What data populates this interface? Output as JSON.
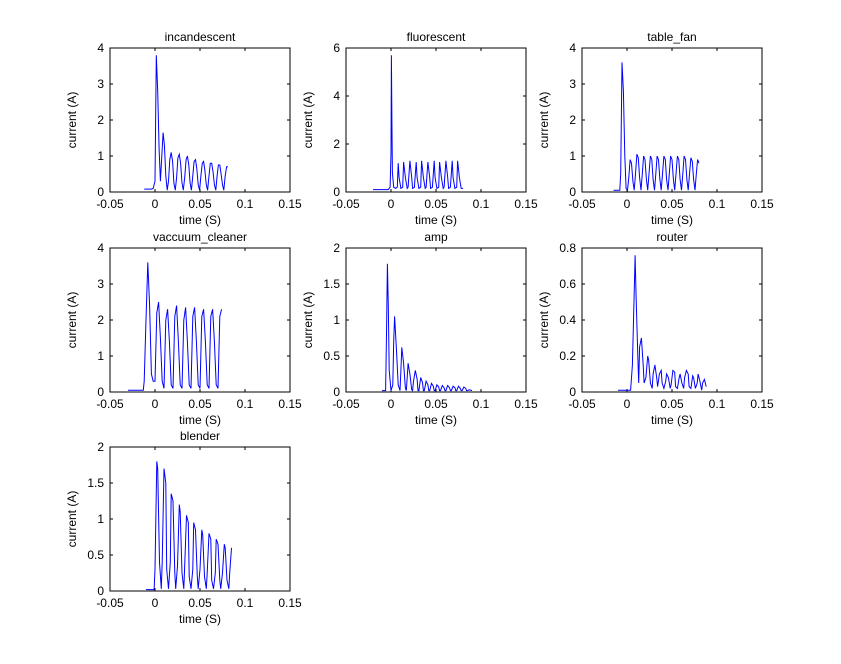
{
  "chart_data": [
    {
      "type": "line",
      "title": "incandescent",
      "xlabel": "time (S)",
      "ylabel": "current (A)",
      "xlim": [
        -0.05,
        0.15
      ],
      "ylim": [
        0,
        4
      ],
      "xticks": [
        "-0.05",
        "0",
        "0.05",
        "0.1",
        "0.15"
      ],
      "yticks": [
        "0",
        "1",
        "2",
        "3",
        "4"
      ],
      "grid": false,
      "series_color": "#0000ff",
      "series": [
        {
          "x": [
            -0.012,
            -0.004,
            -0.002,
            0,
            0.0015,
            0.003,
            0.0045,
            0.006,
            0.0075,
            0.009,
            0.0105,
            0.012,
            0.0135,
            0.015,
            0.0165,
            0.018,
            0.0195,
            0.021,
            0.0225,
            0.024,
            0.0255,
            0.027,
            0.0285,
            0.03,
            0.0315,
            0.033,
            0.0345,
            0.036,
            0.0375,
            0.039,
            0.0405,
            0.042,
            0.0435,
            0.045,
            0.0465,
            0.048,
            0.0495,
            0.051,
            0.0525,
            0.054,
            0.0555,
            0.057,
            0.0585,
            0.06,
            0.0615,
            0.063,
            0.0645,
            0.066,
            0.0675,
            0.069,
            0.0705,
            0.072,
            0.0735,
            0.075,
            0.0765,
            0.078,
            0.0795,
            0.081
          ],
          "y": [
            0.08,
            0.08,
            0.1,
            0.3,
            3.8,
            2.8,
            1.2,
            0.3,
            1.0,
            1.65,
            1.3,
            0.45,
            0.05,
            0.3,
            0.9,
            1.1,
            0.85,
            0.25,
            0.05,
            0.4,
            0.95,
            1.05,
            0.8,
            0.25,
            0.05,
            0.4,
            0.9,
            1.0,
            0.75,
            0.25,
            0.05,
            0.45,
            0.85,
            0.9,
            0.65,
            0.2,
            0.05,
            0.45,
            0.8,
            0.85,
            0.6,
            0.2,
            0.05,
            0.45,
            0.8,
            0.8,
            0.55,
            0.2,
            0.05,
            0.45,
            0.75,
            0.75,
            0.5,
            0.2,
            0.05,
            0.45,
            0.7,
            0.7
          ]
        }
      ]
    },
    {
      "type": "line",
      "title": "fluorescent",
      "xlabel": "time (S)",
      "ylabel": "current (A)",
      "xlim": [
        -0.05,
        0.15
      ],
      "ylim": [
        0,
        6
      ],
      "xticks": [
        "-0.05",
        "0",
        "0.05",
        "0.1",
        "0.15"
      ],
      "yticks": [
        "0",
        "2",
        "4",
        "6"
      ],
      "grid": false,
      "series_color": "#0000ff",
      "series": [
        {
          "x": [
            -0.02,
            -0.003,
            -0.001,
            0,
            0.0005,
            0.001,
            0.0015,
            0.003,
            0.005,
            0.007,
            0.008,
            0.009,
            0.011,
            0.013,
            0.014,
            0.016,
            0.018,
            0.019,
            0.021,
            0.023,
            0.024,
            0.026,
            0.028,
            0.029,
            0.031,
            0.033,
            0.034,
            0.036,
            0.038,
            0.039,
            0.041,
            0.043,
            0.044,
            0.046,
            0.048,
            0.049,
            0.051,
            0.053,
            0.054,
            0.056,
            0.058,
            0.059,
            0.061,
            0.063,
            0.064,
            0.066,
            0.068,
            0.069,
            0.071,
            0.073,
            0.074,
            0.076,
            0.078,
            0.08
          ],
          "y": [
            0.1,
            0.1,
            0.2,
            1.6,
            5.7,
            3.0,
            0.8,
            0.2,
            0.15,
            0.2,
            1.2,
            0.6,
            0.15,
            0.2,
            1.25,
            0.6,
            0.15,
            0.2,
            1.3,
            0.6,
            0.15,
            0.2,
            1.25,
            0.6,
            0.15,
            0.2,
            1.3,
            0.6,
            0.15,
            0.2,
            1.25,
            0.6,
            0.15,
            0.2,
            1.3,
            0.6,
            0.15,
            0.2,
            1.25,
            0.6,
            0.15,
            0.2,
            1.3,
            0.6,
            0.15,
            0.2,
            1.3,
            0.6,
            0.15,
            0.2,
            1.3,
            0.6,
            0.15,
            0.15
          ]
        }
      ]
    },
    {
      "type": "line",
      "title": "table_fan",
      "xlabel": "time (S)",
      "ylabel": "current (A)",
      "xlim": [
        -0.05,
        0.15
      ],
      "ylim": [
        0,
        4
      ],
      "xticks": [
        "-0.05",
        "0",
        "0.05",
        "0.1",
        "0.15"
      ],
      "yticks": [
        "0",
        "1",
        "2",
        "3",
        "4"
      ],
      "grid": false,
      "series_color": "#0000ff",
      "series": [
        {
          "x": [
            -0.015,
            -0.008,
            -0.007,
            -0.0055,
            -0.004,
            -0.0025,
            -0.001,
            0.0005,
            0.002,
            0.0035,
            0.005,
            0.0065,
            0.008,
            0.0095,
            0.011,
            0.0125,
            0.014,
            0.0155,
            0.017,
            0.0185,
            0.02,
            0.0215,
            0.023,
            0.0245,
            0.026,
            0.0275,
            0.029,
            0.0305,
            0.032,
            0.0335,
            0.035,
            0.0365,
            0.038,
            0.0395,
            0.041,
            0.0425,
            0.044,
            0.0455,
            0.047,
            0.0485,
            0.05,
            0.0515,
            0.053,
            0.0545,
            0.056,
            0.0575,
            0.059,
            0.0605,
            0.062,
            0.0635,
            0.065,
            0.0665,
            0.068,
            0.0695,
            0.071,
            0.0725,
            0.074,
            0.0755,
            0.077,
            0.0785,
            0.08
          ],
          "y": [
            0.05,
            0.05,
            0.5,
            3.6,
            2.8,
            1.0,
            0.1,
            0.05,
            0.4,
            0.9,
            0.8,
            0.3,
            0.05,
            0.5,
            1.05,
            0.95,
            0.4,
            0.05,
            0.5,
            1.0,
            0.9,
            0.35,
            0.05,
            0.5,
            1.0,
            0.9,
            0.35,
            0.05,
            0.5,
            1.0,
            0.9,
            0.35,
            0.05,
            0.5,
            1.0,
            0.9,
            0.35,
            0.05,
            0.5,
            1.0,
            0.9,
            0.35,
            0.05,
            0.5,
            1.0,
            0.9,
            0.35,
            0.05,
            0.5,
            1.0,
            0.9,
            0.35,
            0.05,
            0.5,
            0.95,
            0.85,
            0.35,
            0.05,
            0.5,
            0.9,
            0.8
          ]
        }
      ]
    },
    {
      "type": "line",
      "title": "vaccuum_cleaner",
      "xlabel": "time (S)",
      "ylabel": "current (A)",
      "xlim": [
        -0.05,
        0.15
      ],
      "ylim": [
        0,
        4
      ],
      "xticks": [
        "-0.05",
        "0",
        "0.05",
        "0.1",
        "0.15"
      ],
      "yticks": [
        "0",
        "1",
        "2",
        "3",
        "4"
      ],
      "grid": false,
      "series_color": "#0000ff",
      "series": [
        {
          "x": [
            -0.03,
            -0.013,
            -0.012,
            -0.01,
            -0.008,
            -0.006,
            -0.004,
            -0.002,
            0,
            0.002,
            0.004,
            0.006,
            0.008,
            0.01,
            0.012,
            0.014,
            0.016,
            0.018,
            0.02,
            0.022,
            0.024,
            0.026,
            0.028,
            0.03,
            0.032,
            0.034,
            0.036,
            0.038,
            0.04,
            0.042,
            0.044,
            0.046,
            0.048,
            0.05,
            0.052,
            0.054,
            0.056,
            0.058,
            0.06,
            0.062,
            0.064,
            0.066,
            0.068,
            0.07,
            0.072,
            0.074
          ],
          "y": [
            0.05,
            0.05,
            0.3,
            2.0,
            3.6,
            2.4,
            0.5,
            0.3,
            0.3,
            2.2,
            2.5,
            1.5,
            0.3,
            0.1,
            2.0,
            2.3,
            1.4,
            0.2,
            0.1,
            2.1,
            2.4,
            1.4,
            0.2,
            0.1,
            2.0,
            2.35,
            1.4,
            0.2,
            0.1,
            2.1,
            2.35,
            1.4,
            0.2,
            0.1,
            2.1,
            2.3,
            1.4,
            0.2,
            0.1,
            2.1,
            2.3,
            1.4,
            0.2,
            0.1,
            2.1,
            2.3
          ]
        }
      ]
    },
    {
      "type": "line",
      "title": "amp",
      "xlabel": "time (S)",
      "ylabel": "current (A)",
      "xlim": [
        -0.05,
        0.15
      ],
      "ylim": [
        0,
        2
      ],
      "xticks": [
        "-0.05",
        "0",
        "0.05",
        "0.1",
        "0.15"
      ],
      "yticks": [
        "0",
        "0.5",
        "1",
        "1.5",
        "2"
      ],
      "grid": false,
      "series_color": "#0000ff",
      "series": [
        {
          "x": [
            -0.01,
            -0.006,
            -0.005,
            -0.004,
            -0.003,
            -0.002,
            0,
            0.002,
            0.003,
            0.004,
            0.006,
            0.008,
            0.01,
            0.011,
            0.012,
            0.014,
            0.016,
            0.017,
            0.018,
            0.019,
            0.021,
            0.023,
            0.024,
            0.025,
            0.027,
            0.029,
            0.03,
            0.031,
            0.033,
            0.035,
            0.036,
            0.037,
            0.039,
            0.041,
            0.042,
            0.043,
            0.045,
            0.047,
            0.048,
            0.049,
            0.051,
            0.053,
            0.054,
            0.055,
            0.057,
            0.059,
            0.06,
            0.061,
            0.063,
            0.065,
            0.066,
            0.067,
            0.069,
            0.071,
            0.072,
            0.073,
            0.075,
            0.077,
            0.078,
            0.079,
            0.081,
            0.083,
            0.084,
            0.085,
            0.087,
            0.09
          ],
          "y": [
            0.02,
            0.02,
            0.8,
            1.78,
            1.2,
            0.3,
            0.02,
            0.1,
            0.7,
            1.05,
            0.6,
            0.1,
            0.02,
            0.3,
            0.62,
            0.4,
            0.05,
            0.02,
            0.2,
            0.4,
            0.25,
            0.03,
            0.02,
            0.15,
            0.3,
            0.18,
            0.02,
            0.02,
            0.2,
            0.13,
            0.02,
            0.02,
            0.15,
            0.1,
            0.02,
            0.02,
            0.12,
            0.08,
            0.02,
            0.02,
            0.1,
            0.07,
            0.02,
            0.02,
            0.09,
            0.06,
            0.02,
            0.02,
            0.09,
            0.06,
            0.02,
            0.02,
            0.08,
            0.06,
            0.02,
            0.02,
            0.08,
            0.05,
            0.02,
            0.02,
            0.07,
            0.05,
            0.02,
            0.02,
            0.03,
            0.02
          ]
        }
      ]
    },
    {
      "type": "line",
      "title": "router",
      "xlabel": "time (S)",
      "ylabel": "current (A)",
      "xlim": [
        -0.05,
        0.15
      ],
      "ylim": [
        0,
        0.8
      ],
      "xticks": [
        "-0.05",
        "0",
        "0.05",
        "0.1",
        "0.15"
      ],
      "yticks": [
        "0",
        "0.2",
        "0.4",
        "0.6",
        "0.8"
      ],
      "grid": false,
      "series_color": "#0000ff",
      "series": [
        {
          "x": [
            -0.01,
            0.004,
            0.006,
            0.008,
            0.009,
            0.01,
            0.012,
            0.013,
            0.014,
            0.016,
            0.018,
            0.019,
            0.021,
            0.023,
            0.024,
            0.026,
            0.028,
            0.029,
            0.031,
            0.033,
            0.034,
            0.036,
            0.038,
            0.039,
            0.041,
            0.043,
            0.044,
            0.046,
            0.048,
            0.049,
            0.051,
            0.053,
            0.054,
            0.056,
            0.058,
            0.059,
            0.061,
            0.063,
            0.064,
            0.066,
            0.068,
            0.069,
            0.071,
            0.073,
            0.074,
            0.076,
            0.078,
            0.079,
            0.081,
            0.083,
            0.084,
            0.086,
            0.088
          ],
          "y": [
            0.01,
            0.01,
            0.15,
            0.55,
            0.76,
            0.55,
            0.2,
            0.05,
            0.25,
            0.3,
            0.15,
            0.05,
            0.08,
            0.2,
            0.18,
            0.05,
            0.02,
            0.1,
            0.15,
            0.08,
            0.03,
            0.1,
            0.12,
            0.05,
            0.02,
            0.06,
            0.1,
            0.08,
            0.02,
            0.04,
            0.12,
            0.11,
            0.03,
            0.02,
            0.08,
            0.1,
            0.05,
            0.02,
            0.08,
            0.12,
            0.1,
            0.03,
            0.02,
            0.09,
            0.08,
            0.02,
            0.05,
            0.1,
            0.06,
            0.01,
            0.05,
            0.07,
            0.03
          ]
        }
      ]
    },
    {
      "type": "line",
      "title": "blender",
      "xlabel": "time (S)",
      "ylabel": "current (A)",
      "xlim": [
        -0.05,
        0.15
      ],
      "ylim": [
        0,
        2
      ],
      "xticks": [
        "-0.05",
        "0",
        "0.05",
        "0.1",
        "0.15"
      ],
      "yticks": [
        "0",
        "0.5",
        "1",
        "1.5",
        "2"
      ],
      "grid": false,
      "series_color": "#0000ff",
      "series": [
        {
          "x": [
            -0.01,
            -0.001,
            0,
            0.002,
            0.003,
            0.005,
            0.007,
            0.008,
            0.01,
            0.012,
            0.013,
            0.015,
            0.017,
            0.018,
            0.02,
            0.022,
            0.023,
            0.025,
            0.027,
            0.028,
            0.03,
            0.032,
            0.033,
            0.035,
            0.037,
            0.038,
            0.04,
            0.042,
            0.043,
            0.045,
            0.047,
            0.048,
            0.05,
            0.052,
            0.053,
            0.055,
            0.057,
            0.058,
            0.06,
            0.062,
            0.063,
            0.065,
            0.067,
            0.068,
            0.07,
            0.072,
            0.073,
            0.075,
            0.077,
            0.078,
            0.08,
            0.082,
            0.083,
            0.085
          ],
          "y": [
            0.02,
            0.02,
            0.3,
            1.8,
            1.7,
            0.4,
            0.03,
            0.4,
            1.7,
            1.5,
            0.3,
            0.03,
            0.4,
            1.35,
            1.25,
            0.25,
            0.03,
            0.35,
            1.2,
            1.1,
            0.25,
            0.03,
            0.35,
            1.05,
            0.95,
            0.2,
            0.03,
            0.3,
            0.95,
            0.85,
            0.2,
            0.03,
            0.3,
            0.85,
            0.78,
            0.2,
            0.03,
            0.25,
            0.8,
            0.72,
            0.15,
            0.03,
            0.25,
            0.72,
            0.65,
            0.15,
            0.03,
            0.25,
            0.65,
            0.6,
            0.15,
            0.03,
            0.25,
            0.6
          ]
        }
      ]
    }
  ]
}
